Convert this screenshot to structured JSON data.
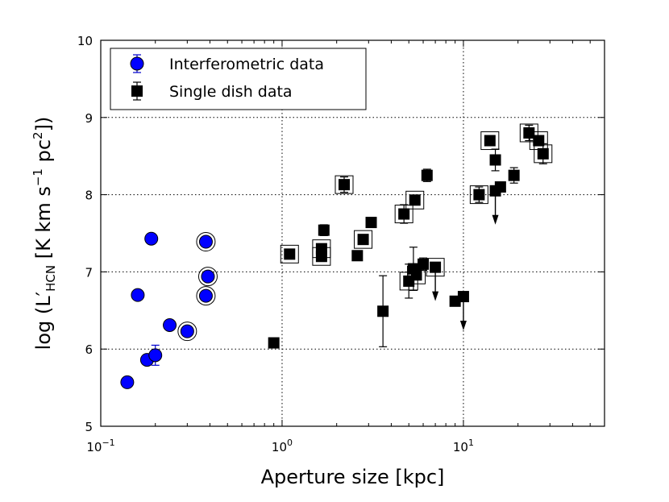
{
  "chart_data": {
    "type": "scatter",
    "title": "",
    "xlabel": "Aperture size [kpc]",
    "ylabel": "log (L'HCN [K km s^-1 pc^2])",
    "ylabel_parts": {
      "prefix": "log (L",
      "prime": "′",
      "sub": "HCN",
      "mid1": " [K km s",
      "sup1": "−1",
      "mid2": " pc",
      "sup2": "2",
      "suffix": "])"
    },
    "x_scale": "log",
    "xlim": [
      0.1,
      60
    ],
    "ylim": [
      5,
      10
    ],
    "grid": true,
    "legend_position": "top-left",
    "x_ticks": [
      {
        "value": 0.1,
        "base": "10",
        "exp": "−1"
      },
      {
        "value": 1,
        "base": "10",
        "exp": "0"
      },
      {
        "value": 10,
        "base": "10",
        "exp": "1"
      }
    ],
    "y_ticks": [
      "5",
      "6",
      "7",
      "8",
      "9",
      "10"
    ],
    "series": [
      {
        "name": "Interferometric data",
        "marker": "circle",
        "color": "#0000ff",
        "points": [
          {
            "x": 0.14,
            "y": 5.57,
            "ring": false
          },
          {
            "x": 0.16,
            "y": 6.7,
            "ring": false
          },
          {
            "x": 0.18,
            "y": 5.86,
            "ring": false
          },
          {
            "x": 0.19,
            "y": 7.43,
            "ring": false
          },
          {
            "x": 0.2,
            "y": 5.92,
            "ring": false,
            "err": [
              0.13,
              0.13
            ]
          },
          {
            "x": 0.24,
            "y": 6.31,
            "ring": false
          },
          {
            "x": 0.3,
            "y": 6.23,
            "ring": true
          },
          {
            "x": 0.38,
            "y": 7.39,
            "ring": true
          },
          {
            "x": 0.39,
            "y": 6.94,
            "ring": true
          },
          {
            "x": 0.38,
            "y": 6.69,
            "ring": true
          }
        ]
      },
      {
        "name": "Single dish data",
        "marker": "square",
        "color": "#000000",
        "points": [
          {
            "x": 0.9,
            "y": 6.08,
            "box": false
          },
          {
            "x": 1.1,
            "y": 7.23,
            "box": true
          },
          {
            "x": 1.65,
            "y": 7.3,
            "box": true
          },
          {
            "x": 1.65,
            "y": 7.2,
            "box": true
          },
          {
            "x": 1.7,
            "y": 7.54,
            "box": false,
            "err": [
              0.07,
              0.07
            ]
          },
          {
            "x": 2.2,
            "y": 8.13,
            "box": true,
            "err": [
              0.1,
              0.1
            ]
          },
          {
            "x": 2.6,
            "y": 7.21,
            "box": false
          },
          {
            "x": 2.8,
            "y": 7.42,
            "box": true
          },
          {
            "x": 3.1,
            "y": 7.64,
            "box": false
          },
          {
            "x": 3.6,
            "y": 6.49,
            "box": false,
            "err": [
              0.46,
              0.46
            ]
          },
          {
            "x": 4.7,
            "y": 7.75,
            "box": true,
            "err": [
              0.12,
              0.12
            ]
          },
          {
            "x": 5.0,
            "y": 6.88,
            "box": true,
            "err": [
              0.22,
              0.22
            ]
          },
          {
            "x": 5.3,
            "y": 7.04,
            "box": false,
            "err": [
              0.28,
              0.28
            ]
          },
          {
            "x": 5.4,
            "y": 7.93,
            "box": true
          },
          {
            "x": 5.5,
            "y": 6.96,
            "box": true
          },
          {
            "x": 6.0,
            "y": 7.1,
            "box": false,
            "err": [
              0.08,
              0.08
            ]
          },
          {
            "x": 6.3,
            "y": 8.25,
            "box": false,
            "err": [
              0.08,
              0.08
            ]
          },
          {
            "x": 7.0,
            "y": 7.06,
            "box": true,
            "upper_limit": true
          },
          {
            "x": 9.0,
            "y": 6.62,
            "box": false
          },
          {
            "x": 10.0,
            "y": 6.68,
            "box": false,
            "upper_limit": true
          },
          {
            "x": 12.2,
            "y": 8.0,
            "box": true,
            "err": [
              0.1,
              0.1
            ]
          },
          {
            "x": 14.0,
            "y": 8.7,
            "box": true
          },
          {
            "x": 15.0,
            "y": 8.45,
            "box": false,
            "err": [
              0.14,
              0.14
            ]
          },
          {
            "x": 15.0,
            "y": 8.05,
            "box": false,
            "upper_limit": true
          },
          {
            "x": 16.0,
            "y": 8.1,
            "box": false
          },
          {
            "x": 19.0,
            "y": 8.25,
            "box": false,
            "err": [
              0.1,
              0.1
            ]
          },
          {
            "x": 23.0,
            "y": 8.8,
            "box": true,
            "err": [
              0.1,
              0.1
            ]
          },
          {
            "x": 26.0,
            "y": 8.7,
            "box": true
          },
          {
            "x": 27.5,
            "y": 8.53,
            "box": true,
            "err": [
              0.13,
              0.13
            ]
          }
        ]
      }
    ]
  }
}
